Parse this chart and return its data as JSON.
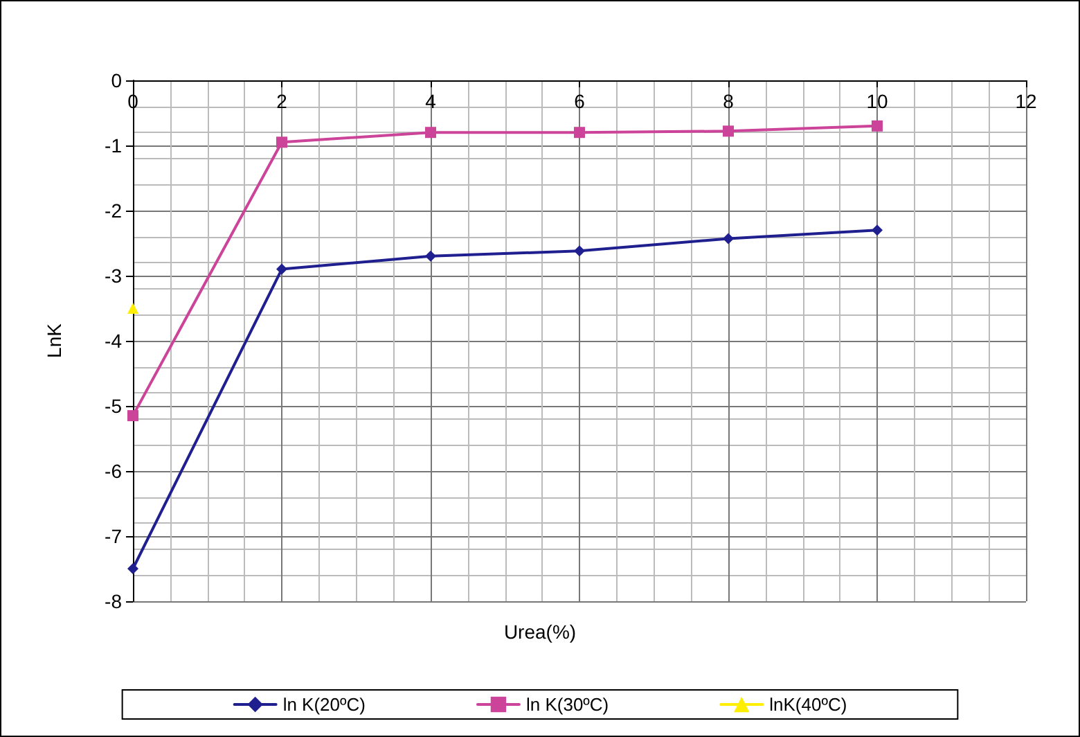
{
  "chart_data": {
    "type": "line",
    "xlabel": "Urea(%)",
    "ylabel": "LnK",
    "xlim": [
      0,
      12
    ],
    "xticks": [
      0,
      2,
      4,
      6,
      8,
      10,
      12
    ],
    "ylim": [
      -8,
      0
    ],
    "yticks": [
      -8,
      -7,
      -6,
      -5,
      -4,
      -3,
      -2,
      -1,
      0
    ],
    "grid": true,
    "legend": "bottom",
    "series": [
      {
        "name": "ln K(20ºC)",
        "color": "#1f1f8f",
        "marker": "diamond",
        "x": [
          0,
          2,
          4,
          6,
          8,
          10
        ],
        "values": [
          -7.5,
          -2.9,
          -2.7,
          -2.62,
          -2.43,
          -2.3
        ]
      },
      {
        "name": "ln K(30ºC)",
        "color": "#cc4499",
        "marker": "square",
        "x": [
          0,
          2,
          4,
          6,
          8,
          10
        ],
        "values": [
          -5.15,
          -0.95,
          -0.8,
          -0.8,
          -0.78,
          -0.7
        ]
      },
      {
        "name": "lnK(40ºC)",
        "color": "#ffee00",
        "marker": "triangle",
        "x": [
          0
        ],
        "values": [
          -3.5
        ]
      }
    ]
  }
}
